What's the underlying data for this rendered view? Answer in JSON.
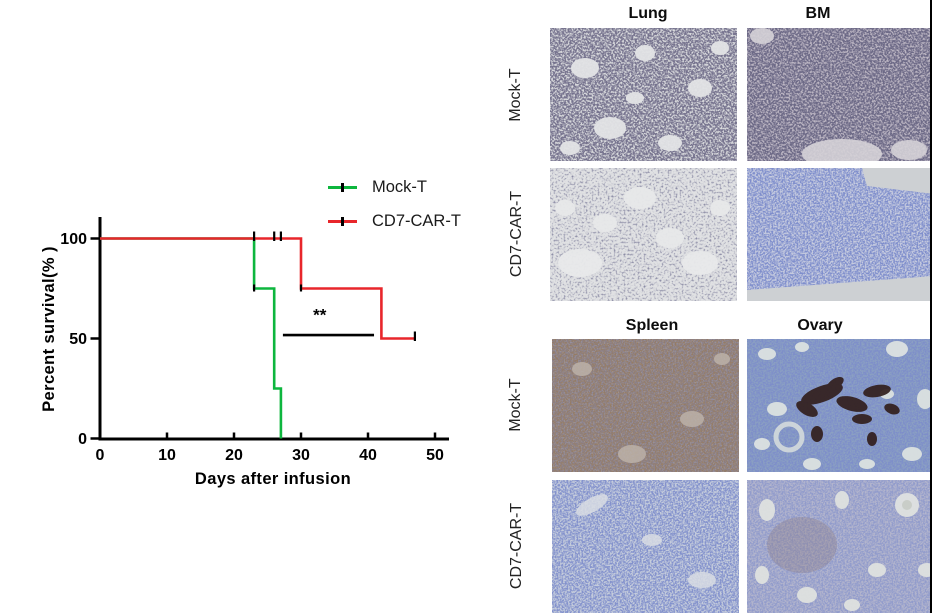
{
  "chart_data": {
    "type": "line",
    "kind": "kaplan-meier-survival",
    "title": "",
    "xlabel": "Days after infusion",
    "ylabel": "Percent survival(% )",
    "xticks": [
      0,
      10,
      20,
      30,
      40,
      50
    ],
    "yticks": [
      0,
      50,
      100
    ],
    "xlim": [
      0,
      52
    ],
    "ylim": [
      0,
      100
    ],
    "grid": false,
    "legend_position": "top-right",
    "series": [
      {
        "name": "Mock-T",
        "color": "#0db63e",
        "points": [
          [
            0,
            100
          ],
          [
            23,
            100
          ],
          [
            23,
            75
          ],
          [
            26,
            75
          ],
          [
            26,
            25
          ],
          [
            27,
            25
          ],
          [
            27,
            0
          ]
        ]
      },
      {
        "name": "CD7-CAR-T",
        "color": "#e8262b",
        "points": [
          [
            0,
            100
          ],
          [
            30,
            100
          ],
          [
            30,
            75
          ],
          [
            42,
            75
          ],
          [
            42,
            50
          ],
          [
            47,
            50
          ]
        ]
      }
    ],
    "censor_ticks": [
      {
        "day": 23,
        "pct": 100
      },
      {
        "day": 26,
        "pct": 100
      },
      {
        "day": 27,
        "pct": 100
      },
      {
        "day": 47,
        "pct": 50
      }
    ],
    "corner_marks": [
      {
        "day": 23,
        "pct": 75
      },
      {
        "day": 30,
        "pct": 75
      }
    ],
    "significance": {
      "label": "**",
      "from_day": 27.3,
      "to_day": 40.9,
      "pct": 51.7,
      "label_day": 32.8,
      "label_pct": 62
    }
  },
  "ui": {
    "histology": {
      "panels": [
        {
          "columns": [
            "Lung",
            "BM"
          ],
          "rows": [
            "Mock-T",
            "CD7-CAR-T"
          ]
        },
        {
          "columns": [
            "Spleen",
            "Ovary"
          ],
          "rows": [
            "Mock-T",
            "CD7-CAR-T"
          ]
        }
      ],
      "tiles": {
        "mock_lung": {
          "base": "#d8d9dc"
        },
        "mock_bm": {
          "base": "#bcb6c3"
        },
        "car_lung": {
          "base": "#e0e1e3"
        },
        "car_bm": {
          "base": "#c6cbdf"
        },
        "mock_spleen": {
          "base": "#a2938a"
        },
        "mock_ovary": {
          "base": "#8ba0c2"
        },
        "car_spleen": {
          "base": "#c6cddc"
        },
        "car_ovary": {
          "base": "#b3b5cd"
        }
      }
    }
  }
}
